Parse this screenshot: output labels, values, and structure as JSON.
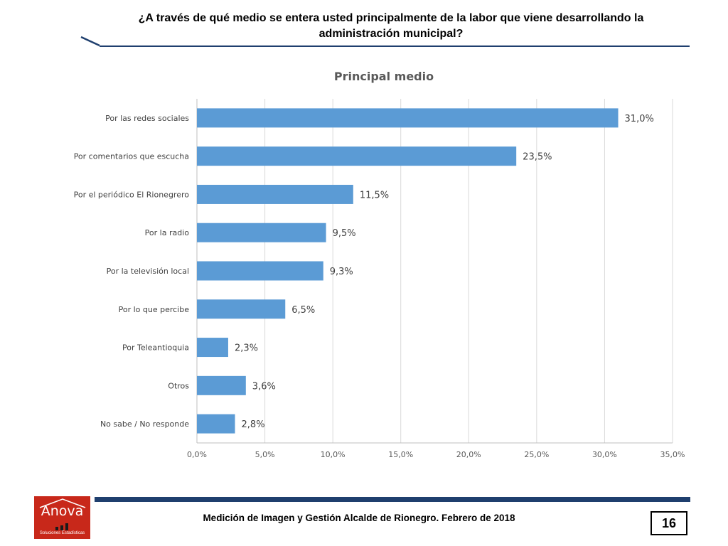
{
  "header": {
    "question": "¿A través de qué medio se entera usted principalmente de la labor que viene desarrollando la administración municipal?"
  },
  "chart_data": {
    "type": "bar",
    "orientation": "horizontal",
    "title": "Principal medio",
    "categories": [
      "Por las redes sociales",
      "Por comentarios que escucha",
      "Por el periódico El Rionegrero",
      "Por la radio",
      "Por la televisión local",
      "Por lo que percibe",
      "Por Teleantioquia",
      "Otros",
      "No sabe / No responde"
    ],
    "values": [
      31.0,
      23.5,
      11.5,
      9.5,
      9.3,
      6.5,
      2.3,
      3.6,
      2.8
    ],
    "data_labels": [
      "31,0%",
      "23,5%",
      "11,5%",
      "9,5%",
      "9,3%",
      "6,5%",
      "2,3%",
      "3,6%",
      "2,8%"
    ],
    "x_ticks": [
      "0,0%",
      "5,0%",
      "10,0%",
      "15,0%",
      "20,0%",
      "25,0%",
      "30,0%",
      "35,0%"
    ],
    "xlim": [
      0,
      35
    ],
    "grid": true,
    "bar_color": "#5b9bd5"
  },
  "footer": {
    "caption": "Medición de Imagen y Gestión Alcalde de Rionegro. Febrero de 2018",
    "page_number": "16"
  },
  "logo": {
    "name": "Anova",
    "tagline": "Soluciones Estadísticas",
    "color": "#c8281a"
  },
  "colors": {
    "accent": "#1f3f6e"
  }
}
